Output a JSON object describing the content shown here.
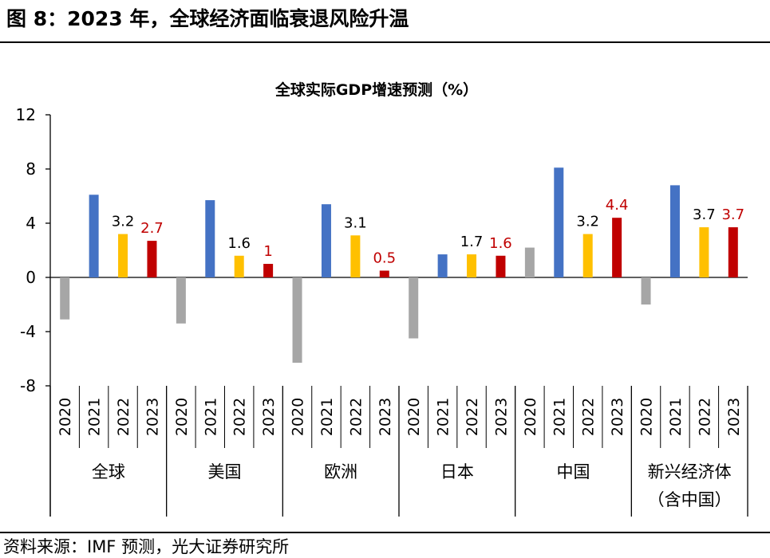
{
  "figure_title": "图 8：2023 年，全球经济面临衰退风险升温",
  "source_note": "资料来源：IMF 预测，光大证券研究所",
  "colors": {
    "2020": "#a6a6a6",
    "2021": "#4472c4",
    "2022": "#ffc000",
    "2023": "#c00000",
    "label_default": "#000000",
    "label_2023": "#c00000"
  },
  "chart_data": {
    "type": "bar",
    "title": "全球实际GDP增速预测（%）",
    "xlabel": "",
    "ylabel": "",
    "ylim": [
      -8,
      12
    ],
    "yticks": [
      "12",
      "8",
      "4",
      "0",
      "-4",
      "-8"
    ],
    "grid": false,
    "years": [
      "2020",
      "2021",
      "2022",
      "2023"
    ],
    "groups": [
      {
        "name": "全球",
        "values": [
          -3.1,
          6.1,
          3.2,
          2.7
        ],
        "labels": [
          "",
          "",
          "3.2",
          "2.7"
        ]
      },
      {
        "name": "美国",
        "values": [
          -3.4,
          5.7,
          1.6,
          1.0
        ],
        "labels": [
          "",
          "",
          "1.6",
          "1"
        ]
      },
      {
        "name": "欧洲",
        "values": [
          -6.3,
          5.4,
          3.1,
          0.5
        ],
        "labels": [
          "",
          "",
          "3.1",
          "0.5"
        ]
      },
      {
        "name": "日本",
        "values": [
          -4.5,
          1.7,
          1.7,
          1.6
        ],
        "labels": [
          "",
          "",
          "1.7",
          "1.6"
        ]
      },
      {
        "name": "中国",
        "values": [
          2.2,
          8.1,
          3.2,
          4.4
        ],
        "labels": [
          "",
          "",
          "3.2",
          "4.4"
        ]
      },
      {
        "name": "新兴经济体",
        "name_line2": "（含中国）",
        "values": [
          -2.0,
          6.8,
          3.7,
          3.7
        ],
        "labels": [
          "",
          "",
          "3.7",
          "3.7"
        ]
      }
    ]
  }
}
